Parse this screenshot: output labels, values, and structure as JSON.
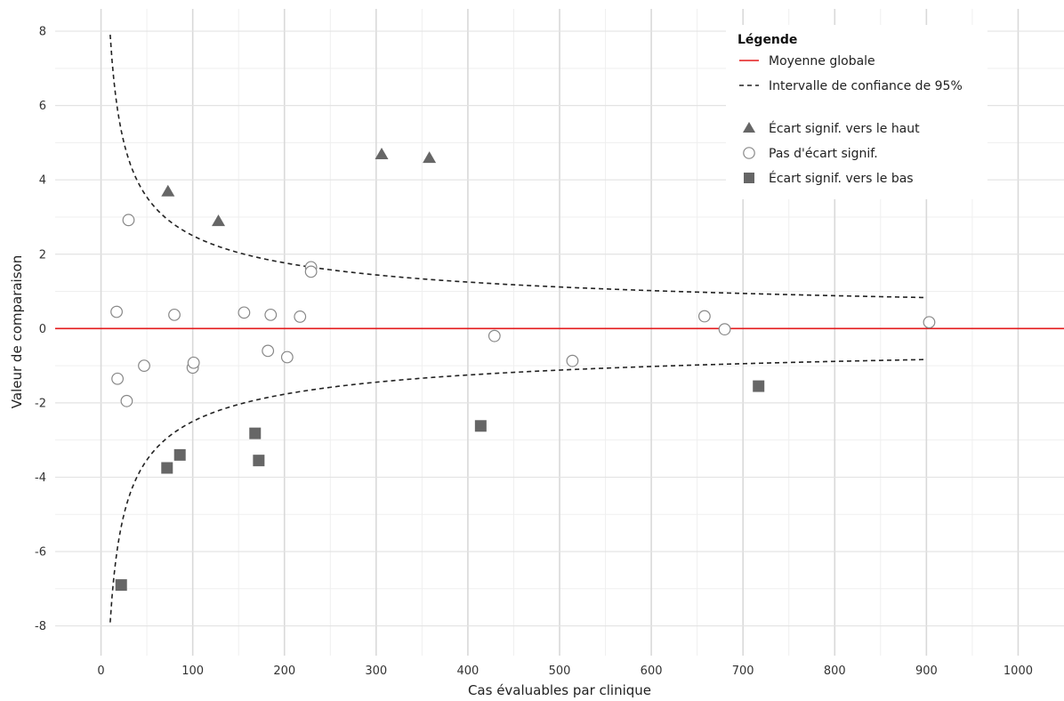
{
  "chart_data": {
    "type": "scatter",
    "xlabel": "Cas évaluables par clinique",
    "ylabel": "Valeur de comparaison",
    "xlim": [
      -50,
      1050
    ],
    "ylim": [
      -8.8,
      8.6
    ],
    "xticks": [
      0,
      100,
      200,
      300,
      400,
      500,
      600,
      700,
      800,
      900,
      1000
    ],
    "yticks": [
      -8,
      -6,
      -4,
      -2,
      0,
      2,
      4,
      6,
      8
    ],
    "grid": true,
    "mean_line": {
      "y": 0,
      "color": "#e31a1c"
    },
    "confidence_interval": {
      "x_range": [
        10,
        900
      ],
      "k": 25,
      "color": "#222222"
    },
    "legend": {
      "title": "Légende",
      "position": "top-right",
      "lines": [
        {
          "label": "Moyenne globale",
          "style": "solid",
          "color": "#e31a1c"
        },
        {
          "label": "Intervalle de confiance de 95%",
          "style": "dashed",
          "color": "#222222"
        }
      ],
      "markers": [
        {
          "label": "Écart signif. vers le haut",
          "shape": "triangle"
        },
        {
          "label": "Pas d'écart signif.",
          "shape": "circle"
        },
        {
          "label": "Écart signif. vers le bas",
          "shape": "square"
        }
      ]
    },
    "series": [
      {
        "shape": "triangle",
        "color": "#666666",
        "points": [
          [
            73,
            3.7
          ],
          [
            128,
            2.9
          ],
          [
            306,
            4.7
          ],
          [
            358,
            4.6
          ]
        ]
      },
      {
        "shape": "circle",
        "color": "#888888",
        "points": [
          [
            17,
            0.45
          ],
          [
            18,
            -1.35
          ],
          [
            28,
            -1.95
          ],
          [
            30,
            2.92
          ],
          [
            47,
            -1.0
          ],
          [
            80,
            0.37
          ],
          [
            100,
            -1.05
          ],
          [
            101,
            -0.92
          ],
          [
            156,
            0.43
          ],
          [
            182,
            -0.6
          ],
          [
            185,
            0.37
          ],
          [
            203,
            -0.77
          ],
          [
            217,
            0.32
          ],
          [
            229,
            1.65
          ],
          [
            229,
            1.53
          ],
          [
            429,
            -0.2
          ],
          [
            514,
            -0.87
          ],
          [
            658,
            0.33
          ],
          [
            680,
            -0.02
          ],
          [
            903,
            0.17
          ]
        ]
      },
      {
        "shape": "square",
        "color": "#666666",
        "points": [
          [
            22,
            -6.9
          ],
          [
            72,
            -3.75
          ],
          [
            86,
            -3.4
          ],
          [
            168,
            -2.82
          ],
          [
            172,
            -3.55
          ],
          [
            414,
            -2.62
          ],
          [
            717,
            -1.55
          ]
        ]
      }
    ]
  }
}
